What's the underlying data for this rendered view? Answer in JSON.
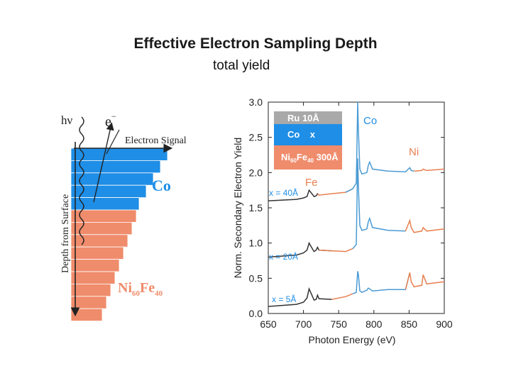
{
  "slide": {
    "title": "Effective Electron Sampling Depth",
    "subtitle": "total yield"
  },
  "schematic": {
    "photon_label": "hν",
    "electron_label": "e",
    "electron_sup": "−",
    "signal_label": "Electron Signal",
    "depth_label": "Depth from Surface",
    "co_label": "Co",
    "nife_label": "Ni",
    "nife_sub1": "60",
    "nife_fe": "Fe",
    "nife_sub2": "40",
    "co_color": "#1f8ee6",
    "nife_color": "#ef8c6c"
  },
  "chart_data": {
    "type": "line",
    "xlabel": "Photon Energy (eV)",
    "ylabel": "Norm. Secondary Electron Yield",
    "xlim": [
      650,
      900
    ],
    "ylim": [
      0,
      3.0
    ],
    "xticks": [
      "650",
      "700",
      "750",
      "800",
      "850",
      "900"
    ],
    "yticks": [
      "0.0",
      "0.5",
      "1.0",
      "1.5",
      "2.0",
      "2.5",
      "3.0"
    ],
    "inset": {
      "layers": [
        "Ru  10Å",
        "Co    x",
        "Ni60Fe40 300Å"
      ],
      "ru_label": "Ru  10Å",
      "co_label": "Co    x",
      "nife_label": "Ni",
      "nife_sub1": "60",
      "nife_fe": "Fe",
      "nife_sub2": "40",
      "nife_thickness": " 300Å",
      "colors": [
        "#a9a9a9",
        "#1f8ee6",
        "#ef8c6c"
      ]
    },
    "annotations": {
      "co": "Co",
      "ni": "Ni",
      "fe": "Fe",
      "x40": "x = 40Å",
      "x20": "x = 20Å",
      "x5": "x = 5Å"
    },
    "colors": {
      "fe": "#e8804f",
      "co": "#4a9bd4",
      "ni": "#e8804f",
      "base": "#333333"
    },
    "series": [
      {
        "thickness": "40Å",
        "baseline": 1.6,
        "x": [
          650,
          690,
          700,
          705,
          708,
          712,
          715,
          718,
          720,
          722,
          740,
          760,
          770,
          775,
          777,
          778,
          780,
          783,
          790,
          792,
          794,
          798,
          820,
          845,
          851,
          853,
          857,
          868,
          870,
          875,
          900
        ],
        "y": [
          1.6,
          1.62,
          1.64,
          1.66,
          1.75,
          1.7,
          1.66,
          1.67,
          1.7,
          1.68,
          1.7,
          1.72,
          1.77,
          1.85,
          3.0,
          2.6,
          2.05,
          1.98,
          2.0,
          2.1,
          2.15,
          2.05,
          2.02,
          2.01,
          2.07,
          2.03,
          2.02,
          2.03,
          2.05,
          2.03,
          2.05
        ],
        "segments": [
          720,
          760,
          855
        ]
      },
      {
        "thickness": "20Å",
        "baseline": 0.8,
        "x": [
          650,
          690,
          700,
          705,
          708,
          712,
          715,
          718,
          720,
          722,
          740,
          760,
          770,
          775,
          777,
          778,
          780,
          783,
          790,
          792,
          794,
          798,
          820,
          845,
          851,
          853,
          857,
          868,
          870,
          875,
          900
        ],
        "y": [
          0.8,
          0.83,
          0.86,
          0.9,
          1.0,
          0.93,
          0.88,
          0.9,
          0.94,
          0.9,
          0.89,
          0.88,
          0.92,
          0.98,
          2.2,
          1.8,
          1.25,
          1.18,
          1.2,
          1.3,
          1.35,
          1.22,
          1.18,
          1.17,
          1.32,
          1.22,
          1.15,
          1.17,
          1.22,
          1.17,
          1.2
        ],
        "segments": [
          722,
          762,
          840
        ]
      },
      {
        "thickness": "5Å",
        "baseline": 0.1,
        "x": [
          650,
          690,
          700,
          705,
          708,
          712,
          715,
          718,
          720,
          722,
          740,
          760,
          770,
          775,
          777,
          778,
          780,
          783,
          790,
          792,
          794,
          798,
          820,
          845,
          851,
          853,
          857,
          868,
          870,
          875,
          900
        ],
        "y": [
          0.1,
          0.13,
          0.16,
          0.22,
          0.35,
          0.26,
          0.19,
          0.2,
          0.26,
          0.21,
          0.2,
          0.24,
          0.28,
          0.3,
          0.6,
          0.55,
          0.32,
          0.3,
          0.33,
          0.36,
          0.35,
          0.32,
          0.34,
          0.34,
          0.58,
          0.45,
          0.38,
          0.4,
          0.55,
          0.42,
          0.45
        ],
        "segments": [
          725,
          765,
          845
        ]
      }
    ]
  }
}
